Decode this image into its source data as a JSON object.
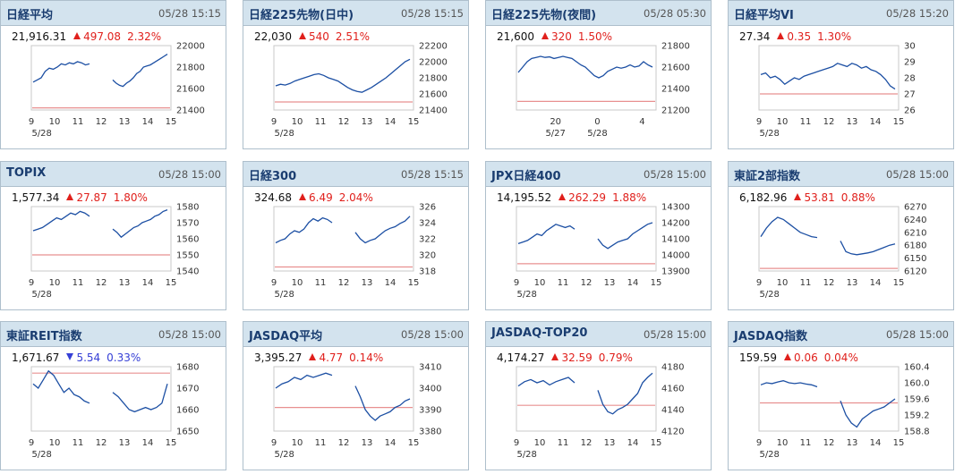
{
  "panels": [
    {
      "title": "日経平均",
      "time": "05/28 15:15",
      "value": "21,916.31",
      "direction": "up",
      "change": "497.08",
      "pct": "2.32%",
      "xlabels": [
        "9",
        "10",
        "11",
        "12",
        "13",
        "14",
        "15"
      ],
      "date": "5/28",
      "ylabels": [
        "22000",
        "21800",
        "21600",
        "21400"
      ],
      "ylim": [
        21400,
        22000
      ],
      "ref": 21420,
      "segments": [
        [
          21660,
          21680,
          21700,
          21760,
          21790,
          21780,
          21800,
          21830,
          21820,
          21840,
          21830,
          21850,
          21840,
          21820,
          21830
        ],
        [
          21680,
          21650,
          21630,
          21620,
          21650,
          21670,
          21700,
          21740,
          21760,
          21800,
          21810,
          21820,
          21840,
          21860,
          21880,
          21900,
          21920
        ]
      ]
    },
    {
      "title": "日経225先物(日中)",
      "time": "05/28 15:15",
      "value": "22,030",
      "direction": "up",
      "change": "540",
      "pct": "2.51%",
      "xlabels": [
        "9",
        "10",
        "11",
        "12",
        "13",
        "14",
        "15"
      ],
      "date": "5/28",
      "ylabels": [
        "22200",
        "22000",
        "21800",
        "21600",
        "21400"
      ],
      "ylim": [
        21400,
        22200
      ],
      "ref": 21500,
      "segments": [
        [
          21700,
          21720,
          21710,
          21730,
          21760,
          21780,
          21800,
          21820,
          21840,
          21850,
          21830,
          21800,
          21780,
          21760,
          21720,
          21680,
          21650,
          21630,
          21620,
          21650,
          21680,
          21720,
          21760,
          21800,
          21850,
          21900,
          21950,
          22000,
          22030
        ]
      ]
    },
    {
      "title": "日経225先物(夜間)",
      "time": "05/28 05:30",
      "value": "21,600",
      "direction": "up",
      "change": "320",
      "pct": "1.50%",
      "xlabels": [
        "20",
        "0",
        "4"
      ],
      "xpos": [
        0.28,
        0.58,
        0.9
      ],
      "date": [
        "5/27",
        "5/28"
      ],
      "datepos": [
        0.28,
        0.58
      ],
      "ylabels": [
        "21800",
        "21600",
        "21400",
        "21200"
      ],
      "ylim": [
        21200,
        21800
      ],
      "ref": 21280,
      "segments": [
        [
          21550,
          21600,
          21650,
          21680,
          21690,
          21700,
          21690,
          21695,
          21680,
          21690,
          21700,
          21690,
          21680,
          21650,
          21620,
          21600,
          21560,
          21520,
          21500,
          21520,
          21560,
          21580,
          21600,
          21590,
          21600,
          21620,
          21600,
          21610,
          21650,
          21620,
          21600
        ]
      ]
    },
    {
      "title": "日経平均VI",
      "time": "05/28 15:20",
      "value": "27.34",
      "direction": "up",
      "change": "0.35",
      "pct": "1.30%",
      "xlabels": [
        "9",
        "10",
        "11",
        "12",
        "13",
        "14",
        "15"
      ],
      "date": "5/28",
      "ylabels": [
        "30",
        "29",
        "28",
        "27",
        "26"
      ],
      "ylim": [
        26,
        30
      ],
      "ref": 27,
      "segments": [
        [
          28.2,
          28.3,
          28.0,
          28.1,
          27.9,
          27.6,
          27.8,
          28.0,
          27.9,
          28.1,
          28.2,
          28.3,
          28.4,
          28.5,
          28.6,
          28.7,
          28.9,
          28.8,
          28.7,
          28.9,
          28.8,
          28.6,
          28.7,
          28.5,
          28.4,
          28.2,
          27.9,
          27.5,
          27.3
        ]
      ]
    },
    {
      "title": "TOPIX",
      "time": "05/28 15:00",
      "value": "1,577.34",
      "direction": "up",
      "change": "27.87",
      "pct": "1.80%",
      "xlabels": [
        "9",
        "10",
        "11",
        "12",
        "13",
        "14",
        "15"
      ],
      "date": "5/28",
      "ylabels": [
        "1580",
        "1570",
        "1560",
        "1550",
        "1540"
      ],
      "ylim": [
        1540,
        1580
      ],
      "ref": 1550,
      "segments": [
        [
          1565,
          1566,
          1567,
          1569,
          1571,
          1573,
          1572,
          1574,
          1576,
          1575,
          1577,
          1576,
          1574
        ],
        [
          1566,
          1564,
          1561,
          1563,
          1565,
          1567,
          1568,
          1570,
          1571,
          1572,
          1574,
          1575,
          1577,
          1578
        ]
      ]
    },
    {
      "title": "日経300",
      "time": "05/28 15:15",
      "value": "324.68",
      "direction": "up",
      "change": "6.49",
      "pct": "2.04%",
      "xlabels": [
        "9",
        "10",
        "11",
        "12",
        "13",
        "14",
        "15"
      ],
      "date": "5/28",
      "ylabels": [
        "326",
        "324",
        "322",
        "320",
        "318"
      ],
      "ylim": [
        318,
        326
      ],
      "ref": 318.5,
      "segments": [
        [
          321.5,
          321.8,
          322.0,
          322.6,
          323.0,
          322.8,
          323.2,
          324.0,
          324.5,
          324.2,
          324.6,
          324.4,
          324.0
        ],
        [
          322.8,
          322.0,
          321.5,
          321.8,
          322.0,
          322.5,
          323.0,
          323.3,
          323.5,
          323.9,
          324.2,
          324.8
        ]
      ]
    },
    {
      "title": "JPX日経400",
      "time": "05/28 15:00",
      "value": "14,195.52",
      "direction": "up",
      "change": "262.29",
      "pct": "1.88%",
      "xlabels": [
        "9",
        "10",
        "11",
        "12",
        "13",
        "14",
        "15"
      ],
      "date": "5/28",
      "ylabels": [
        "14300",
        "14200",
        "14100",
        "14000",
        "13900"
      ],
      "ylim": [
        13900,
        14300
      ],
      "ref": 13945,
      "segments": [
        [
          14070,
          14080,
          14090,
          14110,
          14130,
          14120,
          14150,
          14170,
          14190,
          14180,
          14170,
          14180,
          14160
        ],
        [
          14100,
          14060,
          14040,
          14060,
          14080,
          14090,
          14100,
          14130,
          14150,
          14170,
          14190,
          14200
        ]
      ]
    },
    {
      "title": "東証2部指数",
      "time": "05/28 15:00",
      "value": "6,182.96",
      "direction": "up",
      "change": "53.81",
      "pct": "0.88%",
      "xlabels": [
        "9",
        "10",
        "11",
        "12",
        "13",
        "14",
        "15"
      ],
      "date": "5/28",
      "ylabels": [
        "6270",
        "6240",
        "6210",
        "6180",
        "6150",
        "6120"
      ],
      "ylim": [
        6120,
        6270
      ],
      "ref": 6126,
      "segments": [
        [
          6200,
          6220,
          6235,
          6245,
          6240,
          6230,
          6220,
          6210,
          6205,
          6200,
          6198
        ],
        [
          6190,
          6165,
          6160,
          6158,
          6160,
          6162,
          6165,
          6170,
          6175,
          6180,
          6183
        ]
      ]
    },
    {
      "title": "東証REIT指数",
      "time": "05/28 15:00",
      "value": "1,671.67",
      "direction": "down",
      "change": "5.54",
      "pct": "0.33%",
      "xlabels": [
        "9",
        "10",
        "11",
        "12",
        "13",
        "14",
        "15"
      ],
      "date": "5/28",
      "ylabels": [
        "1680",
        "1670",
        "1660",
        "1650"
      ],
      "ylim": [
        1650,
        1680
      ],
      "ref": 1677,
      "segments": [
        [
          1672,
          1670,
          1674,
          1678,
          1676,
          1672,
          1668,
          1670,
          1667,
          1666,
          1664,
          1663
        ],
        [
          1668,
          1666,
          1663,
          1660,
          1659,
          1660,
          1661,
          1660,
          1661,
          1663,
          1672
        ]
      ]
    },
    {
      "title": "JASDAQ平均",
      "time": "05/28 15:00",
      "value": "3,395.27",
      "direction": "up",
      "change": "4.77",
      "pct": "0.14%",
      "xlabels": [
        "9",
        "10",
        "11",
        "12",
        "13",
        "14",
        "15"
      ],
      "date": "5/28",
      "ylabels": [
        "3410",
        "3400",
        "3390",
        "3380"
      ],
      "ylim": [
        3380,
        3410
      ],
      "ref": 3391,
      "segments": [
        [
          3400,
          3402,
          3403,
          3405,
          3404,
          3406,
          3405,
          3406,
          3407,
          3406
        ],
        [
          3401,
          3396,
          3390,
          3387,
          3385,
          3387,
          3388,
          3389,
          3391,
          3392,
          3394,
          3395
        ]
      ]
    },
    {
      "title": "JASDAQ-TOP20",
      "time": "05/28 15:00",
      "value": "4,174.27",
      "direction": "up",
      "change": "32.59",
      "pct": "0.79%",
      "xlabels": [
        "9",
        "10",
        "11",
        "12",
        "13",
        "14",
        "15"
      ],
      "date": "5/28",
      "ylabels": [
        "4180",
        "4160",
        "4140",
        "4120"
      ],
      "ylim": [
        4120,
        4180
      ],
      "ref": 4144,
      "segments": [
        [
          4162,
          4166,
          4168,
          4165,
          4167,
          4163,
          4166,
          4168,
          4170,
          4165
        ],
        [
          4158,
          4145,
          4138,
          4136,
          4140,
          4142,
          4145,
          4150,
          4155,
          4165,
          4170,
          4174
        ]
      ]
    },
    {
      "title": "JASDAQ指数",
      "time": "05/28 15:00",
      "value": "159.59",
      "direction": "up",
      "change": "0.06",
      "pct": "0.04%",
      "xlabels": [
        "9",
        "10",
        "11",
        "12",
        "13",
        "14",
        "15"
      ],
      "date": "5/28",
      "ylabels": [
        "160.4",
        "160.0",
        "159.6",
        "159.2",
        "158.8"
      ],
      "ylim": [
        158.8,
        160.4
      ],
      "ref": 159.5,
      "segments": [
        [
          159.95,
          160.0,
          159.98,
          160.02,
          160.05,
          160.0,
          159.98,
          160.0,
          159.97,
          159.95,
          159.9
        ],
        [
          159.55,
          159.2,
          159.0,
          158.9,
          159.1,
          159.2,
          159.3,
          159.35,
          159.4,
          159.5,
          159.6
        ]
      ]
    }
  ]
}
